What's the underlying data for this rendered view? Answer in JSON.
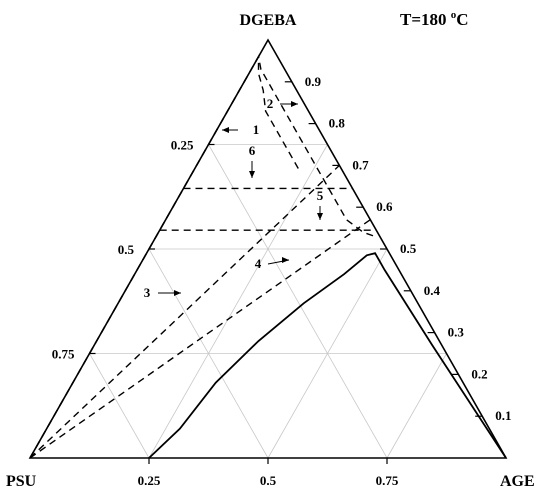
{
  "chart_data": {
    "type": "ternary",
    "title": "T=180 °C",
    "title_main": "T=180 ",
    "title_sup": "o",
    "title_unit": "C",
    "vertices": {
      "top": "DGEBA",
      "left": "PSU",
      "right": "AGE"
    },
    "ticks": {
      "bottom": [
        "0.25",
        "0.5",
        "0.75"
      ],
      "left": [
        "0.25",
        "0.5",
        "0.75"
      ],
      "right": [
        "0.9",
        "0.8",
        "0.7",
        "0.6",
        "0.5",
        "0.4",
        "0.3",
        "0.2",
        "0.1"
      ]
    },
    "tick_values": {
      "bottom": [
        0.25,
        0.5,
        0.75
      ],
      "left": [
        0.25,
        0.5,
        0.75
      ],
      "right": [
        0.9,
        0.8,
        0.7,
        0.6,
        0.5,
        0.4,
        0.3,
        0.2,
        0.1
      ]
    },
    "grid": true,
    "curve_labels": [
      "1",
      "2",
      "3",
      "4",
      "5",
      "6"
    ],
    "curves": [
      {
        "label": "1",
        "style": "dashed",
        "points": [
          [
            0.0,
            0.0,
            1.0
          ],
          [
            0.96,
            0.0,
            0.04
          ],
          [
            0.92,
            0.02,
            0.06
          ],
          [
            0.88,
            0.05,
            0.07
          ],
          [
            0.83,
            0.08,
            0.09
          ],
          [
            0.78,
            0.13,
            0.09
          ],
          [
            0.73,
            0.18,
            0.09
          ],
          [
            0.69,
            0.22,
            0.09
          ]
        ]
      },
      {
        "label": "2",
        "style": "dashed",
        "points": [
          [
            0.0,
            0.0,
            1.0
          ],
          [
            0.96,
            0.0,
            0.04
          ],
          [
            0.93,
            0.02,
            0.05
          ],
          [
            0.89,
            0.06,
            0.05
          ],
          [
            0.84,
            0.11,
            0.05
          ],
          [
            0.78,
            0.17,
            0.05
          ],
          [
            0.72,
            0.23,
            0.05
          ],
          [
            0.67,
            0.28,
            0.05
          ],
          [
            0.65,
            0.3,
            0.05
          ],
          [
            0.57,
            0.38,
            0.05
          ],
          [
            0.54,
            0.43,
            0.03
          ],
          [
            0.53,
            0.46,
            0.01
          ]
        ]
      },
      {
        "label": "3",
        "style": "dashed",
        "points": [
          [
            0.0,
            0.0,
            1.0
          ],
          [
            0.7,
            0.3,
            0.0
          ]
        ]
      },
      {
        "label": "4",
        "style": "dashed",
        "points": [
          [
            0.0,
            0.0,
            1.0
          ],
          [
            0.57,
            0.43,
            0.0
          ]
        ]
      },
      {
        "label": "5",
        "style": "dashed",
        "points": [
          [
            0.545,
            0.0,
            0.455
          ],
          [
            0.545,
            0.455,
            0.0
          ]
        ]
      },
      {
        "label": "6",
        "style": "dashed",
        "points": [
          [
            0.645,
            0.0,
            0.355
          ],
          [
            0.645,
            0.355,
            0.0
          ]
        ]
      },
      {
        "label": "",
        "style": "solid",
        "points": [
          [
            0.0,
            0.25,
            0.75
          ],
          [
            0.07,
            0.28,
            0.65
          ],
          [
            0.18,
            0.3,
            0.52
          ],
          [
            0.28,
            0.34,
            0.38
          ],
          [
            0.37,
            0.39,
            0.24
          ],
          [
            0.44,
            0.44,
            0.12
          ],
          [
            0.485,
            0.465,
            0.05
          ],
          [
            0.49,
            0.48,
            0.03
          ],
          [
            0.45,
            0.52,
            0.03
          ],
          [
            0.27,
            0.71,
            0.02
          ],
          [
            0.0,
            1.0,
            0.0
          ]
        ]
      }
    ]
  }
}
